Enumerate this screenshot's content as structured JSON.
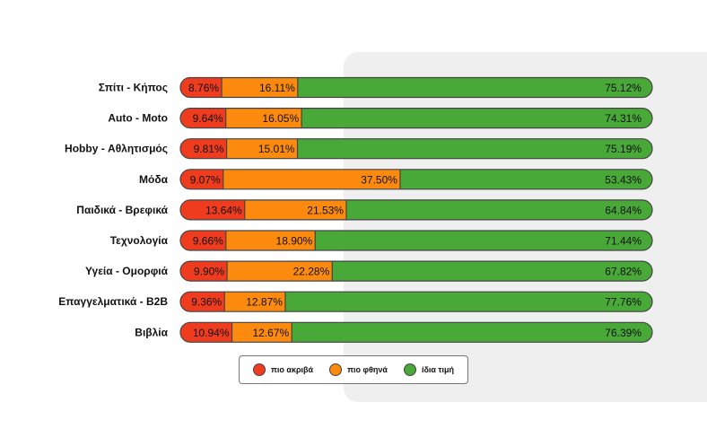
{
  "colors": {
    "more_expensive": "#f03c1e",
    "cheaper": "#fb8a0e",
    "same_price": "#48a838",
    "outline": "#444444",
    "panel": "#efefef"
  },
  "legend": {
    "items": [
      {
        "label": "πιο ακριβά",
        "color": "#f03c1e"
      },
      {
        "label": "πιο φθηνά",
        "color": "#fb8a0e"
      },
      {
        "label": "ίδια τιμή",
        "color": "#48a838"
      }
    ]
  },
  "chart_data": {
    "type": "bar",
    "orientation": "horizontal",
    "stacked": true,
    "xlim": [
      0,
      100
    ],
    "categories": [
      "Σπίτι - Κήπος",
      "Auto - Moto",
      "Hobby - Αθλητισμός",
      "Μόδα",
      "Παιδικά - Βρεφικά",
      "Τεχνολογία",
      "Υγεία - Ομορφιά",
      "Επαγγελματικά - B2B",
      "Βιβλία"
    ],
    "series": [
      {
        "name": "πιο ακριβά",
        "values": [
          8.76,
          9.64,
          9.81,
          9.07,
          13.64,
          9.66,
          9.9,
          9.36,
          10.94
        ],
        "labels": [
          "8.76%",
          "9.64%",
          "9.81%",
          "9.07%",
          "13.64%",
          "9.66%",
          "9.90%",
          "9.36%",
          "10.94%"
        ]
      },
      {
        "name": "πιο φθηνά",
        "values": [
          16.11,
          16.05,
          15.01,
          37.5,
          21.53,
          18.9,
          22.28,
          12.87,
          12.67
        ],
        "labels": [
          "16.11%",
          "16.05%",
          "15.01%",
          "37.50%",
          "21.53%",
          "18.90%",
          "22.28%",
          "12.87%",
          "12.67%"
        ]
      },
      {
        "name": "ίδια τιμή",
        "values": [
          75.12,
          74.31,
          75.19,
          53.43,
          64.84,
          71.44,
          67.82,
          77.76,
          76.39
        ],
        "labels": [
          "75.12%",
          "74.31%",
          "75.19%",
          "53.43%",
          "64.84%",
          "71.44%",
          "67.82%",
          "77.76%",
          "76.39%"
        ]
      }
    ]
  }
}
